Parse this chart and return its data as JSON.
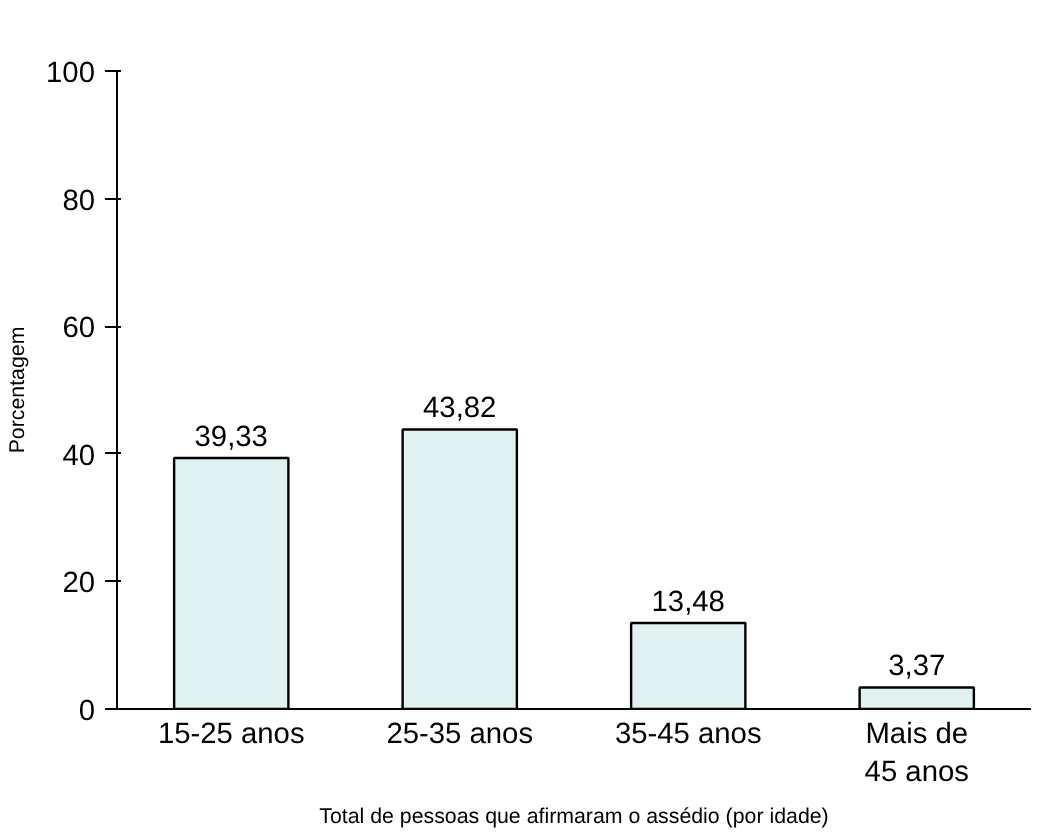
{
  "chart_data": {
    "type": "bar",
    "xlabel": "Total de pessoas que afirmaram o assédio (por idade)",
    "ylabel": "Porcentagem",
    "categories": [
      "15-25 anos",
      "25-35 anos",
      "35-45 anos",
      "Mais de 45 anos"
    ],
    "values": [
      39.33,
      43.82,
      13.48,
      3.37
    ],
    "value_labels": [
      "39,33",
      "43,82",
      "13,48",
      "3,37"
    ],
    "color": "#dff1f1",
    "ylim": [
      0,
      100
    ],
    "yticks": [
      0,
      20,
      40,
      60,
      80,
      100
    ],
    "grid": false
  }
}
